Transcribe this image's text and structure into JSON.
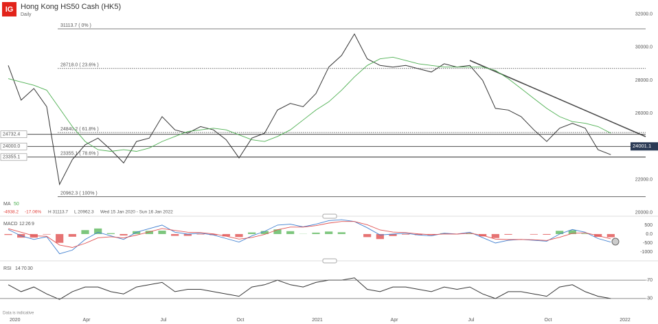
{
  "header": {
    "logo": "IG",
    "title": "Hong Kong HS50 Cash (HK5)",
    "interval": "Daily",
    "note": "Data is indicative"
  },
  "chart_data": [
    {
      "type": "line",
      "categories": [
        "2020",
        null,
        null,
        null,
        null,
        null,
        "Apr",
        null,
        null,
        null,
        null,
        null,
        "Jul",
        null,
        null,
        null,
        null,
        null,
        "Oct",
        null,
        null,
        null,
        null,
        null,
        "2021",
        null,
        null,
        null,
        null,
        null,
        "Apr",
        null,
        null,
        null,
        null,
        null,
        "Jul",
        null,
        null,
        null,
        null,
        null,
        "Oct",
        null,
        null,
        null,
        null,
        null,
        "2022"
      ],
      "series": [
        {
          "color": "#333333",
          "values": [
            28900,
            26800,
            27500,
            26400,
            21700,
            23200,
            24100,
            24500,
            23800,
            23000,
            24300,
            24500,
            25800,
            25000,
            24800,
            25200,
            25000,
            24400,
            23300,
            24500,
            24800,
            26200,
            26600,
            26400,
            27200,
            28800,
            29500,
            30800,
            29300,
            28900,
            28800,
            28900,
            28700,
            28500,
            29000,
            28800,
            28900,
            28000,
            26300,
            26200,
            25800,
            25000,
            24300,
            25100,
            25400,
            25100,
            23800,
            23500,
            null
          ]
        },
        {
          "name": "MA",
          "period": 50,
          "color": "#4caf50",
          "values": [
            28100,
            27900,
            27700,
            27400,
            26300,
            25200,
            24300,
            23800,
            23700,
            23800,
            23700,
            23900,
            24300,
            24600,
            24900,
            25000,
            25100,
            25000,
            24700,
            24400,
            24300,
            24600,
            25000,
            25600,
            26200,
            26700,
            27400,
            28200,
            28900,
            29300,
            29400,
            29200,
            29000,
            28900,
            28800,
            28800,
            28800,
            28800,
            28600,
            28100,
            27500,
            26900,
            26300,
            25800,
            25500,
            25400,
            25200,
            24800,
            null
          ]
        }
      ],
      "ylim": [
        19900,
        32650
      ],
      "yticks": [
        {
          "value": 32000,
          "label": "32000.0"
        },
        {
          "value": 30000,
          "label": "30000.0"
        },
        {
          "value": 28000,
          "label": "28000.0"
        },
        {
          "value": 26000,
          "label": "26000.0"
        },
        {
          "value": 24000,
          "label": "24000.0"
        },
        {
          "value": 22000,
          "label": "22000.0"
        },
        {
          "value": 20000,
          "label": "20000.0"
        }
      ],
      "levels": [
        {
          "value": 31113.7,
          "label": "31113.7 ( 0% )",
          "style": "solid"
        },
        {
          "value": 28718.0,
          "label": "28718.0 ( 23.6% )",
          "style": "dotted"
        },
        {
          "value": 24840.2,
          "label": "24840.2 ( 61.8% )",
          "style": "dotted"
        },
        {
          "value": 23355.1,
          "label": "23355.1 ( 78.6% )",
          "style": "solid"
        },
        {
          "value": 20962.3,
          "label": "20962.3 ( 100% )",
          "style": "solid"
        }
      ],
      "price_tags": [
        24732.4,
        {
          "value": 24000,
          "label": "24000.0"
        },
        23355.1
      ],
      "current_price": 24001.1,
      "summary": {
        "change": "-4938.2",
        "change_pct": "-17.06%",
        "high": "H 31113.7",
        "low": "L 20962.3",
        "range": "Wed 15 Jan 2020 - Sun 16 Jan 2022"
      }
    },
    {
      "type": "macd",
      "title": "MACD",
      "params": [
        12,
        26,
        9
      ],
      "series": [
        {
          "color": "#3f7fd0",
          "values": [
            250,
            -100,
            -300,
            -150,
            -1100,
            -900,
            -300,
            100,
            -100,
            -300,
            100,
            300,
            500,
            100,
            0,
            50,
            -50,
            -250,
            -450,
            -100,
            150,
            500,
            550,
            400,
            550,
            750,
            800,
            700,
            350,
            -50,
            0,
            50,
            -50,
            -100,
            50,
            0,
            100,
            -200,
            -500,
            -350,
            -300,
            -350,
            -400,
            0,
            250,
            100,
            -250,
            -450,
            null
          ]
        },
        {
          "color": "#e05050",
          "values": [
            300,
            100,
            -100,
            -125,
            -610,
            -750,
            -520,
            -210,
            -150,
            -220,
            -60,
            120,
            310,
            200,
            100,
            75,
            10,
            -120,
            -280,
            -190,
            -20,
            240,
            390,
            390,
            470,
            610,
            700,
            700,
            520,
            230,
            110,
            80,
            10,
            -40,
            5,
            0,
            50,
            -70,
            -280,
            -310,
            -300,
            -320,
            -360,
            -180,
            40,
            70,
            -90,
            -270,
            null
          ]
        }
      ],
      "histogram": {
        "colors": [
          "#5cb85c",
          "#e05050"
        ],
        "values": [
          -50,
          -200,
          -200,
          -25,
          -490,
          -150,
          220,
          310,
          50,
          -80,
          160,
          180,
          190,
          -100,
          -100,
          -25,
          -60,
          -130,
          -170,
          90,
          170,
          260,
          160,
          10,
          80,
          140,
          100,
          0,
          -170,
          -280,
          -110,
          -30,
          -60,
          -60,
          45,
          0,
          50,
          -130,
          -220,
          -40,
          0,
          -30,
          -40,
          180,
          210,
          30,
          -160,
          -180,
          null
        ]
      },
      "ylim": [
        -1420,
        880
      ],
      "yticks": [
        500,
        {
          "value": 0,
          "label": "0.0"
        },
        -500,
        -1000
      ]
    },
    {
      "type": "line",
      "title": "RSI",
      "params": [
        14,
        70,
        30
      ],
      "series": [
        {
          "color": "#333333",
          "values": [
            60,
            45,
            55,
            40,
            28,
            45,
            55,
            55,
            45,
            40,
            55,
            60,
            65,
            45,
            50,
            50,
            45,
            40,
            35,
            55,
            60,
            70,
            60,
            55,
            65,
            70,
            70,
            75,
            50,
            45,
            55,
            55,
            50,
            45,
            55,
            50,
            55,
            40,
            30,
            45,
            45,
            40,
            35,
            55,
            60,
            45,
            35,
            30,
            null
          ]
        }
      ],
      "ylim": [
        0,
        100
      ],
      "yticks": [
        70,
        30
      ]
    }
  ]
}
